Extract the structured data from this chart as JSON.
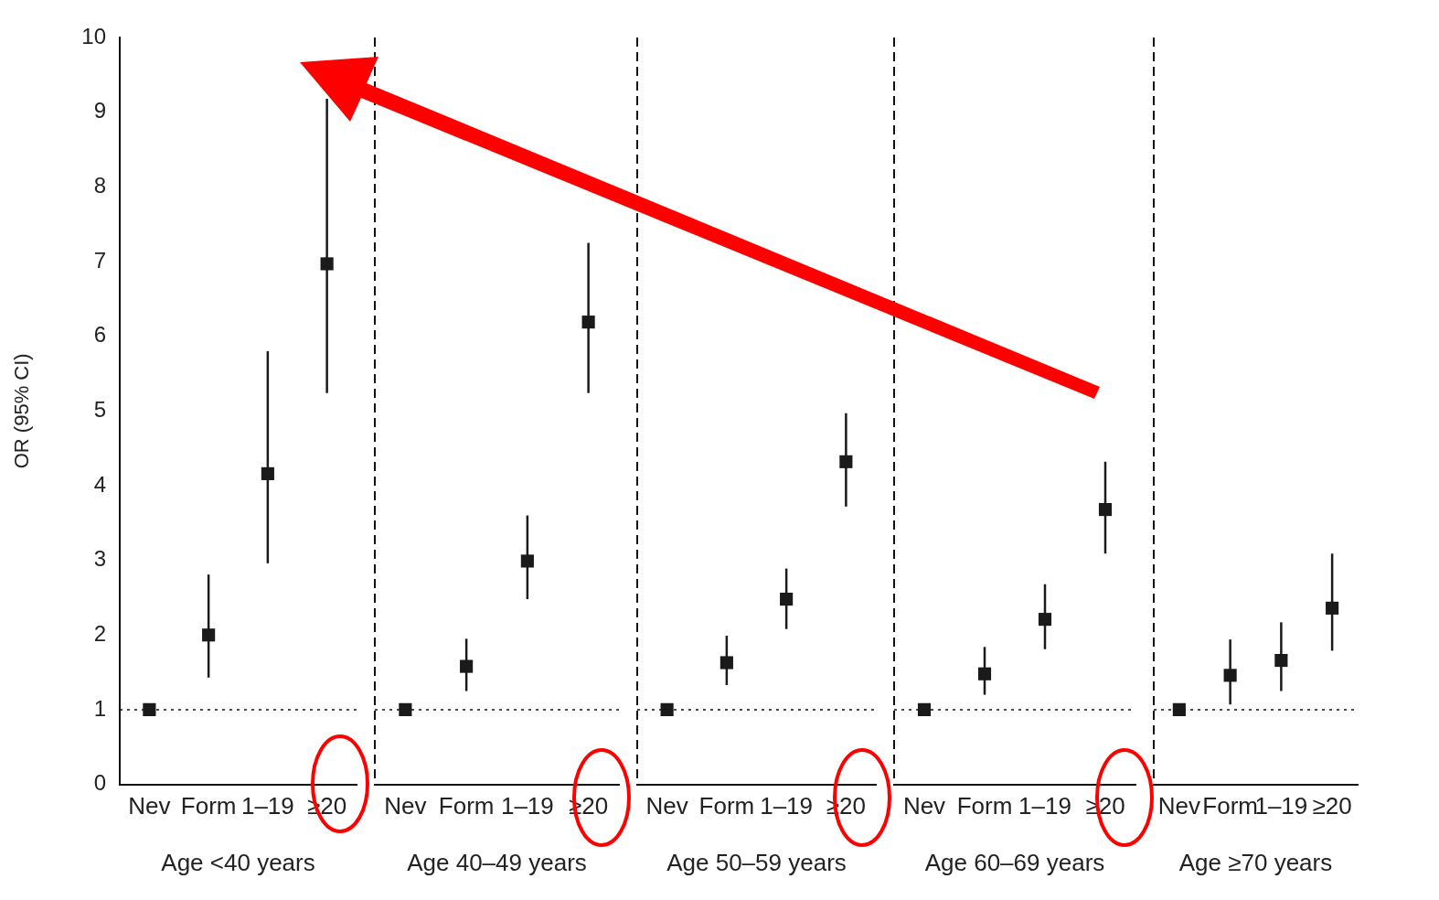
{
  "chart_data": [
    {
      "type": "scatter",
      "categories": [
        "Nev",
        "Form",
        "1–19",
        "≥20"
      ],
      "xlabel": "Age <40 years",
      "ylabel": "OR (95% CI)",
      "ylim": [
        0,
        10
      ],
      "yticks": [
        0,
        1,
        2,
        3,
        4,
        5,
        6,
        7,
        8,
        9,
        10
      ],
      "color": "#1a1a1a",
      "marker": "square",
      "grid": false,
      "ref_lines": [
        {
          "axis": "y",
          "value": 1,
          "line_style": "dotted"
        }
      ],
      "values": [
        1,
        2.0,
        4.16,
        6.97
      ],
      "errors": [
        null,
        [
          1.43,
          2.81
        ],
        [
          2.96,
          5.8
        ],
        [
          5.24,
          9.18
        ]
      ]
    },
    {
      "type": "scatter",
      "categories": [
        "Nev",
        "Form",
        "1–19",
        "≥20"
      ],
      "xlabel": "Age 40–49 years",
      "ylim": [
        0,
        10
      ],
      "yticks": [
        0,
        1,
        2,
        3,
        4,
        5,
        6,
        7,
        8,
        9,
        10
      ],
      "tick_labels": "x",
      "color": "#1a1a1a",
      "marker": "square",
      "grid": false,
      "ref_lines": [
        {
          "axis": "y",
          "value": 1,
          "line_style": "dotted"
        }
      ],
      "values": [
        1,
        1.58,
        2.99,
        6.19
      ],
      "errors": [
        null,
        [
          1.25,
          1.95
        ],
        [
          2.48,
          3.6
        ],
        [
          5.24,
          7.25
        ]
      ]
    },
    {
      "type": "scatter",
      "categories": [
        "Nev",
        "Form",
        "1–19",
        "≥20"
      ],
      "xlabel": "Age 50–59 years",
      "ylim": [
        0,
        10
      ],
      "yticks": [
        0,
        1,
        2,
        3,
        4,
        5,
        6,
        7,
        8,
        9,
        10
      ],
      "tick_labels": "x",
      "color": "#1a1a1a",
      "marker": "square",
      "grid": false,
      "ref_lines": [
        {
          "axis": "y",
          "value": 1,
          "line_style": "dotted"
        }
      ],
      "values": [
        1,
        1.63,
        2.48,
        4.32
      ],
      "errors": [
        null,
        [
          1.33,
          1.99
        ],
        [
          2.08,
          2.89
        ],
        [
          3.72,
          4.97
        ]
      ]
    },
    {
      "type": "scatter",
      "categories": [
        "Nev",
        "Form",
        "1–19",
        "≥20"
      ],
      "xlabel": "Age 60–69 years",
      "ylim": [
        0,
        10
      ],
      "yticks": [
        0,
        1,
        2,
        3,
        4,
        5,
        6,
        7,
        8,
        9,
        10
      ],
      "tick_labels": "x",
      "color": "#1a1a1a",
      "marker": "square",
      "grid": false,
      "ref_lines": [
        {
          "axis": "y",
          "value": 1,
          "line_style": "dotted"
        }
      ],
      "values": [
        1,
        1.48,
        2.21,
        3.68
      ],
      "errors": [
        null,
        [
          1.2,
          1.84
        ],
        [
          1.81,
          2.68
        ],
        [
          3.09,
          4.32
        ]
      ]
    },
    {
      "type": "scatter",
      "categories": [
        "Nev",
        "Form",
        "1–19",
        "≥20"
      ],
      "xlabel": "Age ≥70 years",
      "ylim": [
        0,
        10
      ],
      "yticks": [
        0,
        1,
        2,
        3,
        4,
        5,
        6,
        7,
        8,
        9,
        10
      ],
      "tick_labels": "x",
      "color": "#1a1a1a",
      "marker": "square",
      "grid": false,
      "ref_lines": [
        {
          "axis": "y",
          "value": 1,
          "line_style": "dotted"
        }
      ],
      "values": [
        1,
        1.46,
        1.66,
        2.36
      ],
      "errors": [
        null,
        [
          1.07,
          1.94
        ],
        [
          1.25,
          2.17
        ],
        [
          1.79,
          3.09
        ]
      ]
    }
  ]
}
